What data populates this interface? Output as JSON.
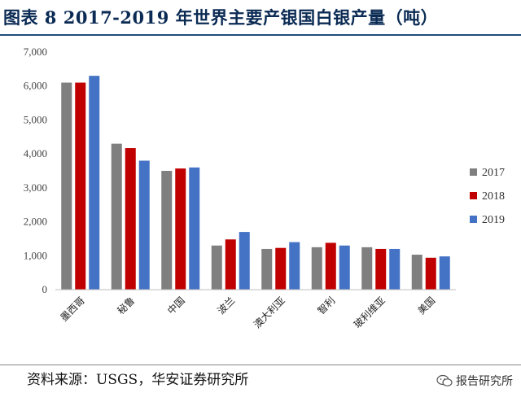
{
  "title": "图表 8 2017-2019 年世界主要产银国白银产量（吨）",
  "source": "资料来源：USGS，华安证券研究所",
  "watermark": "报告研究所",
  "chart_data": {
    "type": "bar",
    "categories": [
      "墨西哥",
      "秘鲁",
      "中国",
      "波兰",
      "澳大利亚",
      "智利",
      "玻利维亚",
      "美国"
    ],
    "series": [
      {
        "name": "2017",
        "color": "#7f7f7f",
        "values": [
          6100,
          4300,
          3500,
          1300,
          1200,
          1250,
          1250,
          1030
        ]
      },
      {
        "name": "2018",
        "color": "#c00000",
        "values": [
          6100,
          4170,
          3570,
          1480,
          1230,
          1380,
          1200,
          940
        ]
      },
      {
        "name": "2019",
        "color": "#4472c4",
        "values": [
          6300,
          3800,
          3600,
          1700,
          1400,
          1300,
          1200,
          980
        ]
      }
    ],
    "yticks": [
      "0",
      "1,000",
      "2,000",
      "3,000",
      "4,000",
      "5,000",
      "6,000",
      "7,000"
    ],
    "ylim": [
      0,
      7000
    ],
    "legend_position": "right",
    "grid": false
  }
}
